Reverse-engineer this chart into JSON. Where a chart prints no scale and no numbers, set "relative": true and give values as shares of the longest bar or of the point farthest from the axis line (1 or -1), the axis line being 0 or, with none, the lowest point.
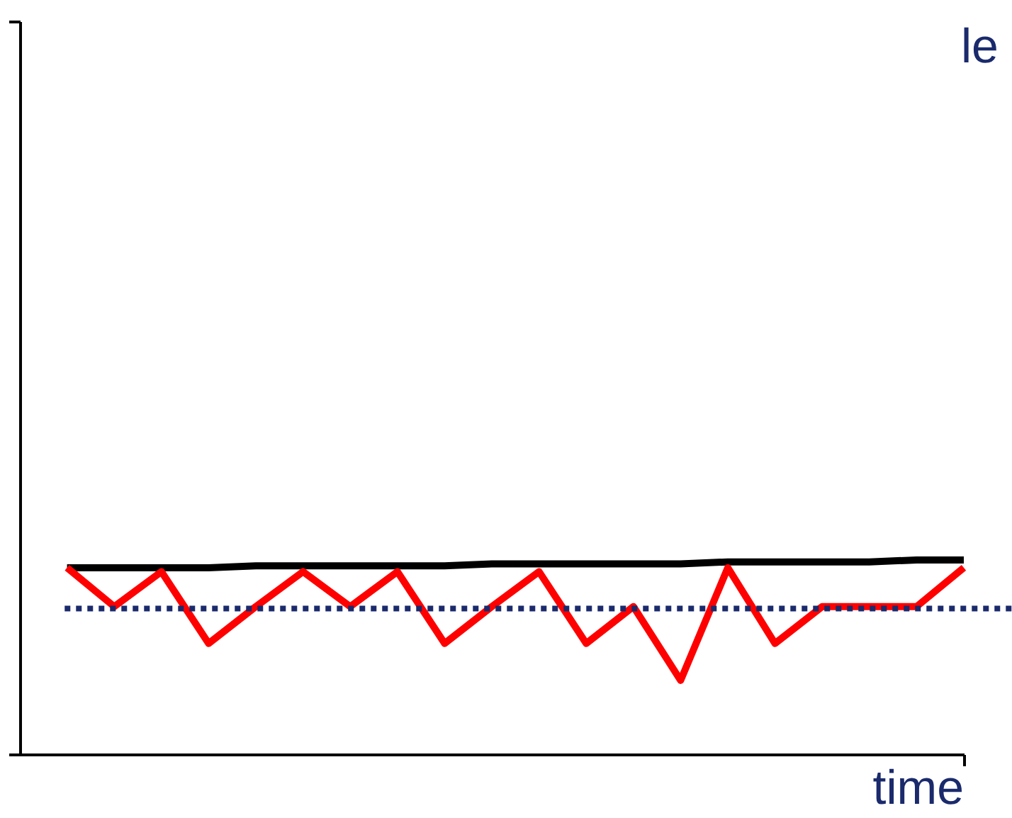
{
  "chart_data": {
    "type": "line",
    "relative": true,
    "xlabel": "time",
    "annotations": [
      "le"
    ],
    "categories": [
      null,
      null,
      null,
      null,
      null,
      null,
      null,
      null,
      null,
      null,
      null,
      null,
      null,
      null,
      null,
      null,
      null,
      null,
      null,
      null
    ],
    "series": [
      {
        "color": "#000000",
        "values": [
          0.96,
          0.96,
          0.96,
          0.96,
          0.97,
          0.97,
          0.97,
          0.97,
          0.97,
          0.98,
          0.98,
          0.98,
          0.98,
          0.98,
          0.99,
          0.99,
          0.99,
          0.99,
          1.0,
          1.0
        ]
      },
      {
        "color": "#ff0000",
        "values": [
          0.96,
          0.76,
          0.94,
          0.57,
          0.76,
          0.94,
          0.76,
          0.94,
          0.57,
          0.76,
          0.94,
          0.57,
          0.76,
          0.38,
          0.96,
          0.57,
          0.76,
          0.76,
          0.76,
          0.96
        ]
      }
    ],
    "ref_lines": [
      {
        "axis": "y",
        "value": 0.75,
        "color": "#1a2a6c",
        "line_style": "dotted"
      }
    ],
    "marker": "none",
    "line_style": "solid"
  }
}
